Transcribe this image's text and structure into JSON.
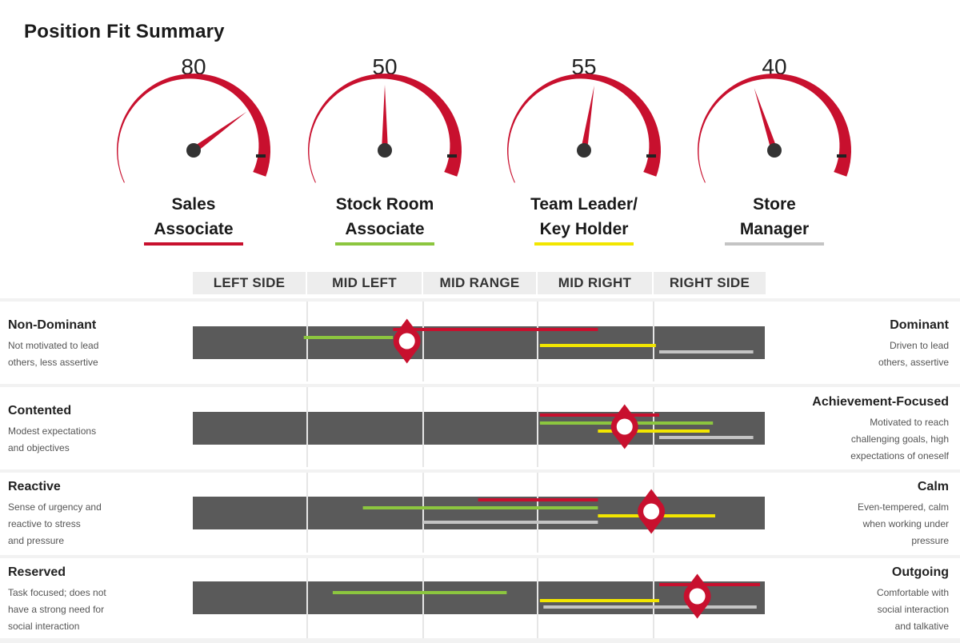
{
  "title": "Position Fit Summary",
  "gauges": [
    {
      "score": "80",
      "value": 80,
      "role_line1": "Sales",
      "role_line2": "Associate",
      "color": "#c8102e"
    },
    {
      "score": "50",
      "value": 50,
      "role_line1": "Stock Room",
      "role_line2": "Associate",
      "color": "#8cc63f"
    },
    {
      "score": "55",
      "value": 55,
      "role_line1": "Team Leader/",
      "role_line2": "Key Holder",
      "color": "#f2e600"
    },
    {
      "score": "40",
      "value": 40,
      "role_line1": "Store",
      "role_line2": "Manager",
      "color": "#c4c4c4"
    }
  ],
  "zones": [
    "LEFT SIDE",
    "MID LEFT",
    "MID RANGE",
    "MID RIGHT",
    "RIGHT SIDE"
  ],
  "colors": {
    "band": "#5a5a5a",
    "accent": "#c8102e",
    "row_bg": "#f2f2f2"
  },
  "chart_data": {
    "type": "range",
    "title": "Position Fit Summary",
    "scale": "0 = start of LEFT SIDE, 5 = end of RIGHT SIDE (one unit per zone)",
    "series": [
      {
        "name": "Sales Associate",
        "color": "#c8102e"
      },
      {
        "name": "Stock Room Associate",
        "color": "#8cc63f"
      },
      {
        "name": "Team Leader/Key Holder",
        "color": "#f2e600"
      },
      {
        "name": "Store Manager",
        "color": "#c4c4c4"
      }
    ],
    "traits": [
      {
        "left_title": "Non-Dominant",
        "left_desc": [
          "Not motivated to lead",
          "others, less assertive"
        ],
        "right_title": "Dominant",
        "right_desc": [
          "Driven to lead",
          "others, assertive"
        ],
        "marker": 1.86,
        "ranges": [
          [
            1.74,
            3.52
          ],
          [
            0.97,
            1.74
          ],
          [
            3.02,
            4.02
          ],
          [
            4.05,
            4.89
          ]
        ]
      },
      {
        "left_title": "Contented",
        "left_desc": [
          "Modest expectations",
          "and objectives"
        ],
        "right_title": "Achievement-Focused",
        "right_desc": [
          "Motivated to reach",
          "challenging goals, high",
          "expectations of oneself"
        ],
        "marker": 3.75,
        "ranges": [
          [
            3.02,
            4.05
          ],
          [
            3.02,
            4.53
          ],
          [
            3.52,
            4.5
          ],
          [
            4.05,
            4.89
          ]
        ]
      },
      {
        "left_title": "Reactive",
        "left_desc": [
          "Sense of urgency and",
          "reactive to stress",
          "and pressure"
        ],
        "right_title": "Calm",
        "right_desc": [
          "Even-tempered, calm",
          "when working under",
          "pressure"
        ],
        "marker": 3.98,
        "ranges": [
          [
            2.48,
            3.52
          ],
          [
            1.48,
            3.52
          ],
          [
            3.52,
            4.55
          ],
          [
            2.0,
            3.52
          ]
        ]
      },
      {
        "left_title": "Reserved",
        "left_desc": [
          "Task focused; does not",
          "have a strong need for",
          "social interaction"
        ],
        "right_title": "Outgoing",
        "right_desc": [
          "Comfortable with",
          "social interaction",
          "and talkative"
        ],
        "marker": 4.39,
        "ranges": [
          [
            4.05,
            4.95
          ],
          [
            1.22,
            2.73
          ],
          [
            3.02,
            4.05
          ],
          [
            3.05,
            4.92
          ]
        ]
      }
    ]
  }
}
